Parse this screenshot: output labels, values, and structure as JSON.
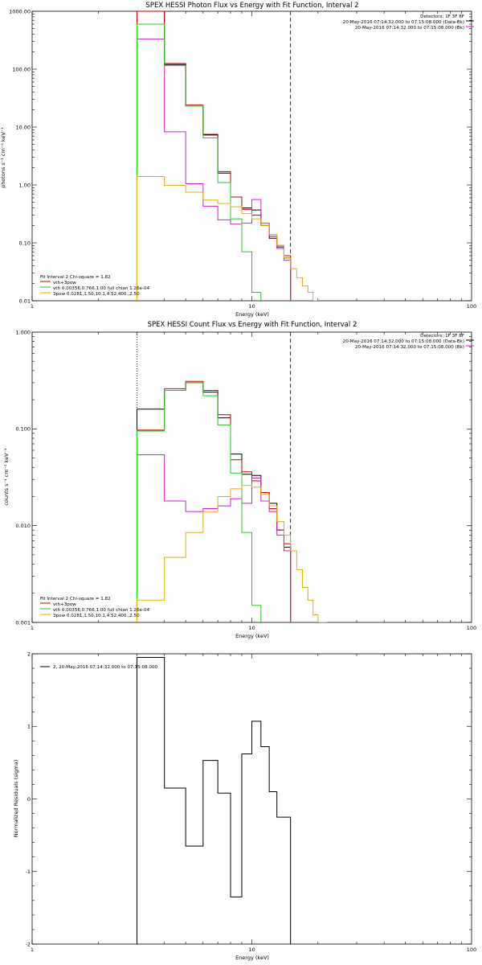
{
  "panels": [
    {
      "id": "photon",
      "title": "SPEX HESSI Photon Flux vs Energy with Fit Function, Interval 2",
      "xlabel": "Energy (keV)",
      "ylabel": "photons s⁻¹ cm⁻² keV⁻¹",
      "xlim": [
        1,
        100
      ],
      "ylim": [
        0.01,
        1000
      ],
      "yscale": "log",
      "xticks": [
        {
          "v": 1,
          "label": "1"
        },
        {
          "v": 10,
          "label": "10"
        },
        {
          "v": 100,
          "label": "100"
        }
      ],
      "yticks": [
        {
          "v": 0.01,
          "label": "0.01"
        },
        {
          "v": 0.1,
          "label": "0.10"
        },
        {
          "v": 1,
          "label": "1.00"
        },
        {
          "v": 10,
          "label": "10.00"
        },
        {
          "v": 100,
          "label": "100.00"
        },
        {
          "v": 1000,
          "label": "1000.00"
        }
      ],
      "legend_tr": [
        "Detectors: 1F 3F 8F",
        "20-May-2016 07:14:32.000 to 07:15:08.000 (Data-Bk)",
        "20-May-2016 07:14:32.000 to 07:15:08.000 (Bk)"
      ],
      "legend_bl_head": "Fit Interval  2   Chi-square = 1.82",
      "legend_bl": [
        {
          "text": "vth+3pow",
          "color": "#cc0000"
        },
        {
          "text": "vth 0.00356,0.766,1.00  full chian 1.26e-04",
          "color": "#22cc22"
        },
        {
          "text": "3pow 0.0281,1.50,10.1,4.52,400.,2.50",
          "color": "#e0b000"
        }
      ],
      "vlines": [
        {
          "x": 3,
          "style": "dotted"
        },
        {
          "x": 15,
          "style": "dashed"
        }
      ]
    },
    {
      "id": "count",
      "title": "SPEX HESSI Count Flux vs Energy with Fit Function, Interval 2",
      "xlabel": "Energy (keV)",
      "ylabel": "counts s⁻¹ cm⁻² keV⁻¹",
      "xlim": [
        1,
        100
      ],
      "ylim": [
        0.001,
        1
      ],
      "yscale": "log",
      "xticks": [
        {
          "v": 1,
          "label": "1"
        },
        {
          "v": 10,
          "label": "10"
        },
        {
          "v": 100,
          "label": "100"
        }
      ],
      "yticks": [
        {
          "v": 0.001,
          "label": "0.001"
        },
        {
          "v": 0.01,
          "label": "0.010"
        },
        {
          "v": 0.1,
          "label": "0.100"
        },
        {
          "v": 1,
          "label": "1.000"
        }
      ],
      "legend_tr": [
        "Detectors: 1F 3F 8F",
        "20-May-2016 07:14:32.000 to 07:15:08.000 (Data-Bk)",
        "20-May-2016 07:14:32.000 to 07:15:08.000 (Bk)"
      ],
      "legend_bl_head": "Fit Interval  2   Chi-square = 1.82",
      "legend_bl": [
        {
          "text": "vth+3pow",
          "color": "#cc0000"
        },
        {
          "text": "vth 0.00356,0.766,1.00  full chian 1.26e-04",
          "color": "#22cc22"
        },
        {
          "text": "3pow 0.0281,1.50,10.1,4.52,400.,2.50",
          "color": "#e0b000"
        }
      ],
      "vlines": [
        {
          "x": 3,
          "style": "dotted"
        },
        {
          "x": 15,
          "style": "dashed"
        }
      ]
    },
    {
      "id": "resid",
      "title": "",
      "xlabel": "Energy (keV)",
      "ylabel": "Normalized Residuals (sigma)",
      "xlim": [
        1,
        100
      ],
      "ylim": [
        -2,
        2
      ],
      "yscale": "linear",
      "xticks": [
        {
          "v": 1,
          "label": "1"
        },
        {
          "v": 10,
          "label": "10"
        },
        {
          "v": 100,
          "label": "100"
        }
      ],
      "yticks": [
        {
          "v": -2,
          "label": "-2"
        },
        {
          "v": -1,
          "label": "-1"
        },
        {
          "v": 0,
          "label": "0"
        },
        {
          "v": 1,
          "label": "1"
        },
        {
          "v": 2,
          "label": "2"
        }
      ],
      "legend_resid": "2, 20-May-2016 07:14:32.000 to 07:15:08.000"
    }
  ],
  "chart_data": [
    {
      "type": "line",
      "title": "SPEX HESSI Photon Flux vs Energy with Fit Function, Interval 2",
      "xlabel": "Energy (keV)",
      "ylabel": "photons s⁻¹ cm⁻² keV⁻¹",
      "xscale": "log",
      "yscale": "log",
      "xlim": [
        1,
        100
      ],
      "ylim": [
        0.01,
        1000
      ],
      "grid": false,
      "legend_placement": "top-right and bottom-left",
      "series": [
        {
          "name": "20-May-2016 07:14:32.000 to 07:15:08.000 (Data-Bk)",
          "color": "#000000",
          "style": "step",
          "edges": [
            3,
            4,
            5,
            6,
            7,
            8,
            9,
            10,
            11,
            12,
            13,
            14,
            15
          ],
          "values": [
            1000,
            120,
            23,
            7.3,
            1.6,
            0.62,
            0.4,
            0.37,
            0.2,
            0.12,
            0.085,
            0.055
          ]
        },
        {
          "name": "vth+3pow",
          "color": "#cc0000",
          "style": "step",
          "edges": [
            3,
            4,
            5,
            6,
            7,
            8,
            9,
            10,
            11,
            12,
            13,
            14,
            15
          ],
          "values": [
            1000,
            125,
            24,
            7.5,
            1.7,
            0.62,
            0.38,
            0.3,
            0.2,
            0.13,
            0.09,
            0.06
          ]
        },
        {
          "name": "",
          "color": "#cc22cc",
          "style": "step",
          "edges": [
            3,
            4,
            5,
            6,
            7,
            8,
            9,
            10,
            11,
            12,
            13,
            14,
            15
          ],
          "values": [
            330,
            8.3,
            1.05,
            0.43,
            0.25,
            0.21,
            0.22,
            0.56,
            0.22,
            0.13,
            0.08,
            0.05
          ]
        },
        {
          "name": "vth 0.00356,0.766,1.00  full chian 1.26e-04",
          "color": "#22cc22",
          "style": "step",
          "edges": [
            3,
            4,
            5,
            6,
            7,
            8,
            9,
            10,
            11
          ],
          "values": [
            600,
            115,
            23,
            6.5,
            1.1,
            0.26,
            0.07,
            0.014
          ]
        },
        {
          "name": "3pow 0.0281,1.50,10.1,4.52,400.,2.50",
          "color": "#e0b000",
          "style": "step",
          "edges": [
            3,
            4,
            5,
            6,
            7,
            8,
            9,
            10,
            11,
            12,
            13,
            14,
            15,
            16,
            17,
            18,
            19,
            20
          ],
          "values": [
            1.4,
            0.98,
            0.75,
            0.55,
            0.48,
            0.42,
            0.32,
            0.26,
            0.2,
            0.14,
            0.09,
            0.055,
            0.036,
            0.025,
            0.018,
            0.014,
            0.01
          ]
        }
      ],
      "vlines": [
        {
          "x": 3,
          "style": "dotted"
        },
        {
          "x": 15,
          "style": "dashed"
        }
      ]
    },
    {
      "type": "line",
      "title": "SPEX HESSI Count Flux vs Energy with Fit Function, Interval 2",
      "xlabel": "Energy (keV)",
      "ylabel": "counts s⁻¹ cm⁻² keV⁻¹",
      "xscale": "log",
      "yscale": "log",
      "xlim": [
        1,
        100
      ],
      "ylim": [
        0.001,
        1
      ],
      "grid": false,
      "legend_placement": "top-right and bottom-left",
      "series": [
        {
          "name": "20-May-2016 07:14:32.000 to 07:15:08.000 (Data-Bk)",
          "color": "#000000",
          "style": "step",
          "edges": [
            3,
            4,
            5,
            6,
            7,
            8,
            9,
            10,
            11,
            12,
            13,
            14,
            15
          ],
          "values": [
            0.16,
            0.25,
            0.3,
            0.24,
            0.13,
            0.055,
            0.034,
            0.033,
            0.022,
            0.017,
            0.009,
            0.006
          ]
        },
        {
          "name": "vth+3pow",
          "color": "#cc0000",
          "style": "step",
          "edges": [
            3,
            4,
            5,
            6,
            7,
            8,
            9,
            10,
            11,
            12,
            13,
            14,
            15
          ],
          "values": [
            0.097,
            0.26,
            0.31,
            0.25,
            0.14,
            0.048,
            0.036,
            0.029,
            0.022,
            0.015,
            0.009,
            0.0065
          ]
        },
        {
          "name": "",
          "color": "#cc22cc",
          "style": "step",
          "edges": [
            3,
            4,
            5,
            6,
            7,
            8,
            9,
            10,
            11,
            12,
            13,
            14,
            15
          ],
          "values": [
            0.054,
            0.018,
            0.014,
            0.015,
            0.016,
            0.019,
            0.017,
            0.031,
            0.018,
            0.014,
            0.008,
            0.0055
          ]
        },
        {
          "name": "vth 0.00356,0.766,1.00  full chian 1.26e-04",
          "color": "#22cc22",
          "style": "step",
          "edges": [
            3,
            4,
            5,
            6,
            7,
            8,
            9,
            10,
            11
          ],
          "values": [
            0.095,
            0.25,
            0.3,
            0.22,
            0.11,
            0.035,
            0.0085,
            0.0015
          ]
        },
        {
          "name": "3pow 0.0281,1.50,10.1,4.52,400.,2.50",
          "color": "#e0b000",
          "style": "step",
          "edges": [
            3,
            4,
            5,
            6,
            7,
            8,
            9,
            10,
            11,
            12,
            13,
            14,
            15,
            16,
            17,
            18,
            19,
            20,
            22
          ],
          "values": [
            0.0017,
            0.0047,
            0.0085,
            0.014,
            0.02,
            0.024,
            0.026,
            0.025,
            0.021,
            0.016,
            0.011,
            0.008,
            0.0055,
            0.0035,
            0.0023,
            0.0017,
            0.0012,
            0.001
          ]
        }
      ],
      "vlines": [
        {
          "x": 3,
          "style": "dotted"
        },
        {
          "x": 15,
          "style": "dashed"
        }
      ]
    },
    {
      "type": "line",
      "title": "",
      "xlabel": "Energy (keV)",
      "ylabel": "Normalized Residuals (sigma)",
      "xscale": "log",
      "yscale": "linear",
      "xlim": [
        1,
        100
      ],
      "ylim": [
        -2,
        2
      ],
      "grid": false,
      "legend_placement": "top-left",
      "series": [
        {
          "name": "2, 20-May-2016 07:14:32.000 to 07:15:08.000",
          "color": "#000000",
          "style": "step",
          "edges": [
            3,
            4,
            5,
            6,
            7,
            8,
            9,
            10,
            11,
            12,
            13,
            14,
            15
          ],
          "values": [
            1.95,
            0.15,
            -0.65,
            0.53,
            0.08,
            -1.35,
            0.62,
            1.07,
            0.72,
            0.1,
            -0.25,
            -0.25
          ]
        }
      ]
    }
  ]
}
